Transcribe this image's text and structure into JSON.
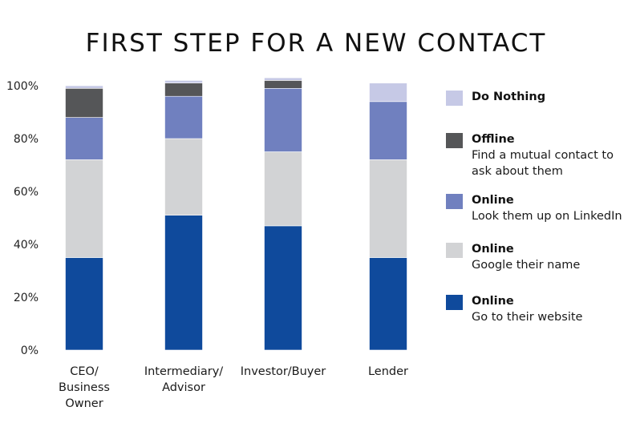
{
  "chart_data": {
    "type": "bar",
    "stacked": true,
    "title": "FIRST STEP FOR A NEW CONTACT",
    "xlabel": "",
    "ylabel": "",
    "ylim": [
      0,
      100
    ],
    "yticks": [
      "0%",
      "20%",
      "40%",
      "60%",
      "80%",
      "100%"
    ],
    "categories": [
      [
        "CEO/",
        "Business",
        "Owner"
      ],
      [
        "Intermediary/",
        "Advisor"
      ],
      [
        "Investor/Buyer"
      ],
      [
        "Lender"
      ]
    ],
    "series": [
      {
        "name": "Go to their website",
        "group": "Online",
        "color": "#0f4a9c",
        "values": [
          35,
          51,
          47,
          35
        ]
      },
      {
        "name": "Google their name",
        "group": "Online",
        "color": "#d2d3d5",
        "values": [
          37,
          29,
          28,
          37
        ]
      },
      {
        "name": "Look them up on LinkedIn",
        "group": "Online",
        "color": "#7080bf",
        "values": [
          16,
          16,
          24,
          22
        ]
      },
      {
        "name": "Find a mutual contact to ask about them",
        "group": "Offline",
        "color": "#555658",
        "values": [
          11,
          5,
          3,
          0
        ]
      },
      {
        "name": "Do Nothing",
        "group": "",
        "color": "#c6c9e6",
        "values": [
          1,
          1,
          1,
          7
        ]
      }
    ],
    "grid": false,
    "legend_position": "right"
  },
  "legend": [
    {
      "title": "Do Nothing",
      "desc": "",
      "color": "#c6c9e6"
    },
    {
      "title": "Offline",
      "desc": "Find a mutual contact to ask about them",
      "color": "#555658"
    },
    {
      "title": "Online",
      "desc": "Look them up on LinkedIn",
      "color": "#7080bf"
    },
    {
      "title": "Online",
      "desc": "Google their name",
      "color": "#d2d3d5"
    },
    {
      "title": "Online",
      "desc": "Go to their website",
      "color": "#0f4a9c"
    }
  ]
}
